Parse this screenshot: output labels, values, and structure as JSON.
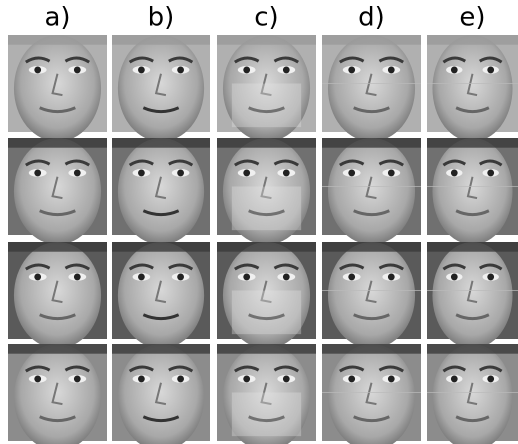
{
  "column_labels": [
    "a)",
    "b)",
    "c)",
    "d)",
    "e)"
  ]
}
